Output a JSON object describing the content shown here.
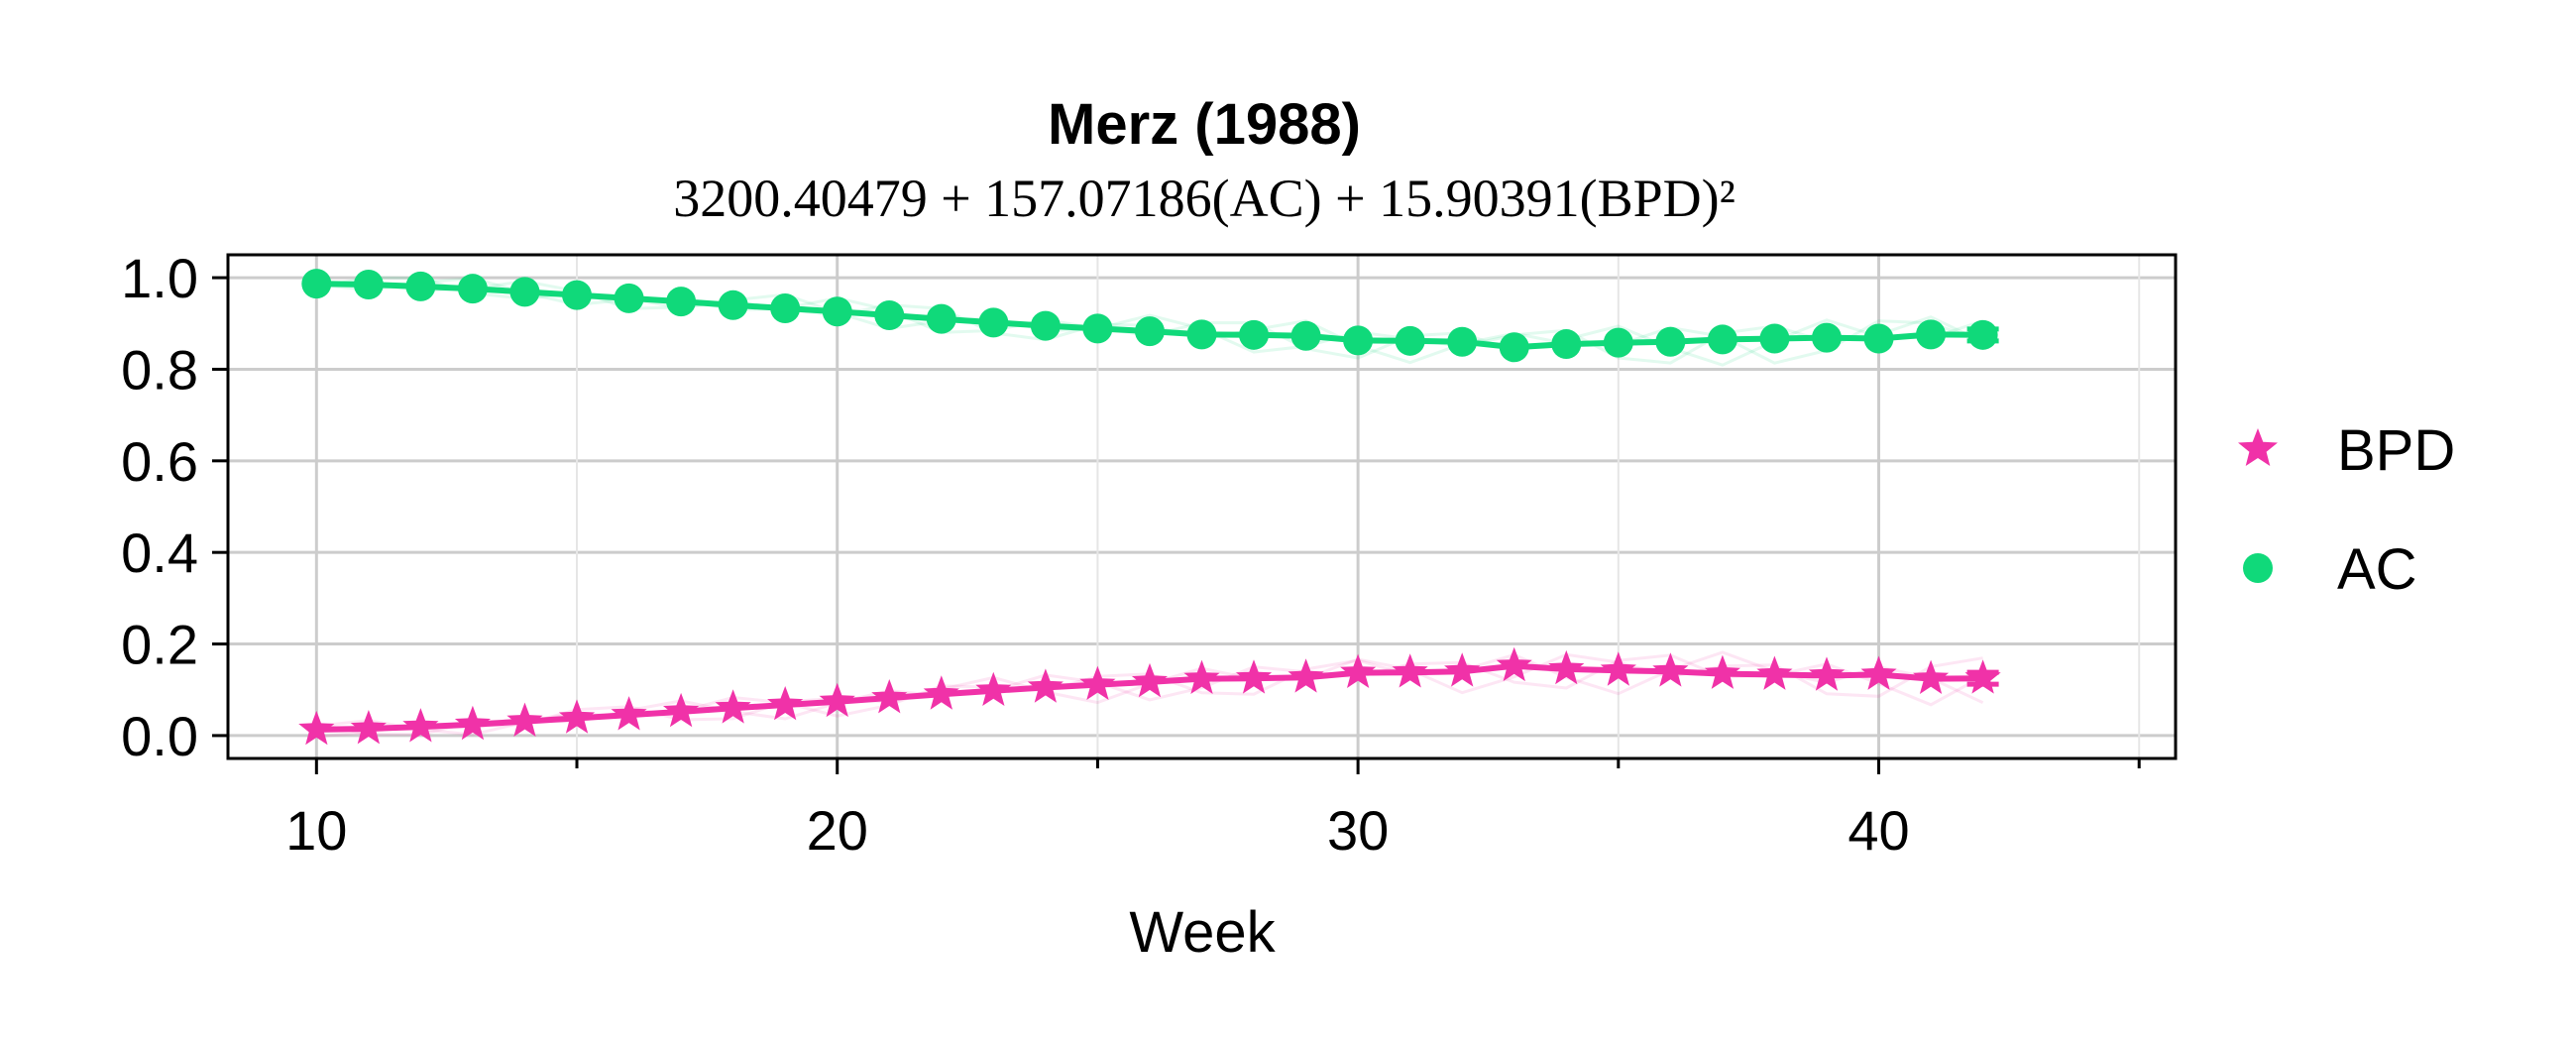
{
  "chart_data": {
    "type": "line",
    "title": "Merz (1988)",
    "subtitle": "3200.40479 + 157.07186(AC) + 15.90391(BPD)²",
    "xlabel": "Week",
    "ylabel": "",
    "xlim": [
      8.3,
      45.7
    ],
    "ylim": [
      -0.05,
      1.05
    ],
    "xticks": [
      10,
      20,
      30,
      40
    ],
    "xminor": [
      15,
      25,
      35,
      45
    ],
    "yticks": [
      0.0,
      0.2,
      0.4,
      0.6,
      0.8,
      1.0
    ],
    "ytick_labels": [
      "0.0",
      "0.2",
      "0.4",
      "0.6",
      "0.8",
      "1.0"
    ],
    "grid": true,
    "legend_position": "right",
    "x": [
      10,
      11,
      12,
      13,
      14,
      15,
      16,
      17,
      18,
      19,
      20,
      21,
      22,
      23,
      24,
      25,
      26,
      27,
      28,
      29,
      30,
      31,
      32,
      33,
      34,
      35,
      36,
      37,
      38,
      39,
      40,
      41,
      42
    ],
    "series": [
      {
        "name": "BPD",
        "marker": "star",
        "color": "#f032a8",
        "values": [
          0.013,
          0.015,
          0.019,
          0.024,
          0.031,
          0.038,
          0.045,
          0.052,
          0.06,
          0.067,
          0.074,
          0.082,
          0.09,
          0.098,
          0.105,
          0.111,
          0.117,
          0.124,
          0.125,
          0.127,
          0.137,
          0.138,
          0.14,
          0.152,
          0.145,
          0.142,
          0.14,
          0.135,
          0.133,
          0.131,
          0.133,
          0.124,
          0.125
        ]
      },
      {
        "name": "AC",
        "marker": "circle",
        "color": "#10d97a",
        "values": [
          0.987,
          0.985,
          0.981,
          0.976,
          0.969,
          0.962,
          0.955,
          0.948,
          0.94,
          0.933,
          0.926,
          0.918,
          0.91,
          0.902,
          0.895,
          0.889,
          0.883,
          0.876,
          0.875,
          0.873,
          0.863,
          0.862,
          0.86,
          0.848,
          0.855,
          0.858,
          0.86,
          0.865,
          0.867,
          0.869,
          0.867,
          0.876,
          0.875
        ]
      }
    ]
  }
}
